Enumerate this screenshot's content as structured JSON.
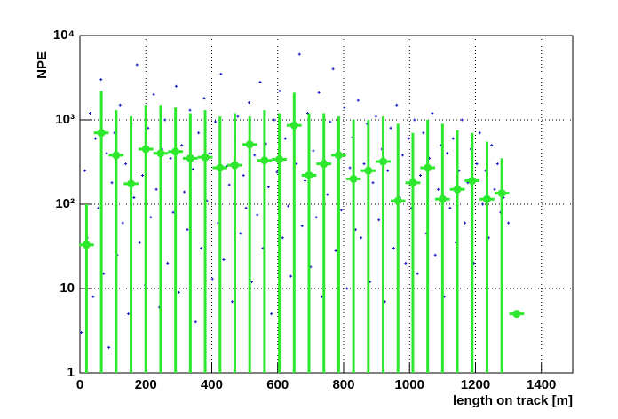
{
  "chart_data": {
    "type": "scatter",
    "xlabel": "length on track [m]",
    "ylabel": "NPE",
    "xlim": [
      0,
      1495
    ],
    "ylim": [
      1,
      10000
    ],
    "ylog": true,
    "grid": true,
    "xticks": [
      0,
      200,
      400,
      600,
      800,
      1000,
      1200,
      1400
    ],
    "yticks": [
      1,
      10,
      {
        "value": 100,
        "label": "10²"
      },
      {
        "value": 1000,
        "label": "10³"
      },
      {
        "value": 10000,
        "label": "10⁴"
      }
    ],
    "series": [
      {
        "color": "#1010c8",
        "marker": "cross",
        "x": [
          4,
          15,
          22,
          31,
          40,
          47,
          56,
          64,
          72,
          81,
          88,
          97,
          105,
          113,
          122,
          130,
          139,
          147,
          156,
          164,
          173,
          181,
          190,
          198,
          207,
          215,
          224,
          232,
          241,
          249,
          258,
          266,
          275,
          283,
          292,
          300,
          309,
          317,
          326,
          334,
          343,
          351,
          360,
          368,
          377,
          385,
          394,
          402,
          411,
          419,
          428,
          436,
          445,
          453,
          462,
          470,
          479,
          487,
          496,
          504,
          513,
          521,
          530,
          538,
          547,
          555,
          564,
          572,
          581,
          589,
          598,
          606,
          615,
          623,
          632,
          640,
          649,
          657,
          666,
          674,
          683,
          691,
          700,
          708,
          717,
          725,
          734,
          742,
          751,
          759,
          768,
          776,
          785,
          793,
          802,
          810,
          819,
          827,
          836,
          844,
          853,
          862,
          871,
          880,
          889,
          898,
          907,
          916,
          925,
          934,
          943,
          952,
          961,
          970,
          979,
          988,
          997,
          1006,
          1015,
          1024,
          1033,
          1042,
          1051,
          1060,
          1069,
          1078,
          1087,
          1096,
          1105,
          1114,
          1123,
          1132,
          1141,
          1150,
          1159,
          1168,
          1177,
          1186,
          1195,
          1204,
          1213,
          1222,
          1231,
          1240,
          1249,
          1258,
          1267,
          1276,
          1285,
          1300
        ],
        "values": [
          3,
          250,
          40,
          1200,
          8,
          600,
          90,
          3000,
          15,
          400,
          2,
          180,
          700,
          25,
          1500,
          60,
          300,
          5,
          900,
          120,
          4500,
          35,
          220,
          11,
          800,
          70,
          2000,
          150,
          6,
          450,
          1000,
          20,
          350,
          80,
          2500,
          9,
          500,
          140,
          50,
          1300,
          260,
          4,
          700,
          30,
          1800,
          110,
          400,
          13,
          950,
          60,
          3500,
          22,
          280,
          170,
          7,
          650,
          1100,
          45,
          220,
          90,
          1600,
          12,
          380,
          75,
          2800,
          30,
          520,
          160,
          5,
          1000,
          240,
          2200,
          40,
          600,
          95,
          14,
          850,
          300,
          6000,
          55,
          190,
          1200,
          18,
          430,
          70,
          2100,
          8,
          330,
          130,
          950,
          4000,
          28,
          500,
          85,
          1400,
          10,
          270,
          620,
          50,
          1700,
          40,
          300,
          900,
          12,
          180,
          1100,
          65,
          450,
          7,
          250,
          800,
          30,
          1500,
          120,
          380,
          20,
          600,
          90,
          1000,
          15,
          220,
          700,
          45,
          350,
          1200,
          25,
          150,
          500,
          8,
          400,
          90,
          600,
          35,
          250,
          1000,
          60,
          180,
          450,
          20,
          300,
          700,
          100,
          250,
          40,
          500,
          150,
          300,
          80,
          120,
          60
        ]
      },
      {
        "color": "#2ee82e",
        "marker": "circle",
        "xerr": 22.5,
        "x": [
          20,
          65,
          110,
          155,
          200,
          245,
          290,
          335,
          380,
          425,
          470,
          515,
          560,
          605,
          650,
          695,
          740,
          785,
          830,
          875,
          920,
          965,
          1010,
          1055,
          1100,
          1145,
          1190,
          1235,
          1280,
          1325
        ],
        "values": [
          33,
          700,
          380,
          175,
          450,
          400,
          420,
          350,
          360,
          270,
          290,
          510,
          330,
          340,
          860,
          220,
          300,
          380,
          200,
          250,
          320,
          110,
          180,
          270,
          115,
          150,
          190,
          115,
          135,
          5
        ],
        "errors": [
          67,
          1500,
          920,
          925,
          1050,
          1100,
          980,
          850,
          940,
          830,
          910,
          590,
          970,
          860,
          1240,
          980,
          900,
          720,
          800,
          750,
          780,
          790,
          520,
          730,
          785,
          600,
          510,
          435,
          215,
          0
        ]
      }
    ]
  }
}
